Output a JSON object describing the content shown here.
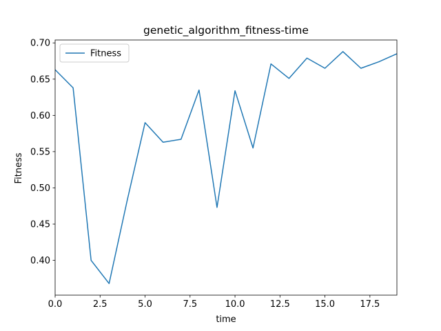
{
  "chart_data": {
    "type": "line",
    "title": "genetic_algorithm_fitness-time",
    "xlabel": "time",
    "ylabel": "Fitness",
    "xlim": [
      0,
      19
    ],
    "ylim": [
      0.352,
      0.704
    ],
    "x_ticks": [
      0,
      2.5,
      5,
      7.5,
      10,
      12.5,
      15,
      17.5
    ],
    "x_tick_labels": [
      "0.0",
      "2.5",
      "5.0",
      "7.5",
      "10.0",
      "12.5",
      "15.0",
      "17.5"
    ],
    "y_ticks": [
      0.4,
      0.45,
      0.5,
      0.55,
      0.6,
      0.65,
      0.7
    ],
    "y_tick_labels": [
      "0.40",
      "0.45",
      "0.50",
      "0.55",
      "0.60",
      "0.65",
      "0.70"
    ],
    "grid": false,
    "legend": {
      "position": "upper-left",
      "entries": [
        "Fitness"
      ]
    },
    "series": [
      {
        "name": "Fitness",
        "color": "#1f77b4",
        "x": [
          0,
          1,
          2,
          3,
          4,
          5,
          6,
          7,
          8,
          9,
          10,
          11,
          12,
          13,
          14,
          15,
          16,
          17,
          18,
          19
        ],
        "y": [
          0.663,
          0.638,
          0.4,
          0.368,
          0.482,
          0.59,
          0.563,
          0.567,
          0.635,
          0.473,
          0.634,
          0.555,
          0.671,
          0.651,
          0.679,
          0.665,
          0.688,
          0.665,
          0.674,
          0.685
        ]
      }
    ]
  }
}
